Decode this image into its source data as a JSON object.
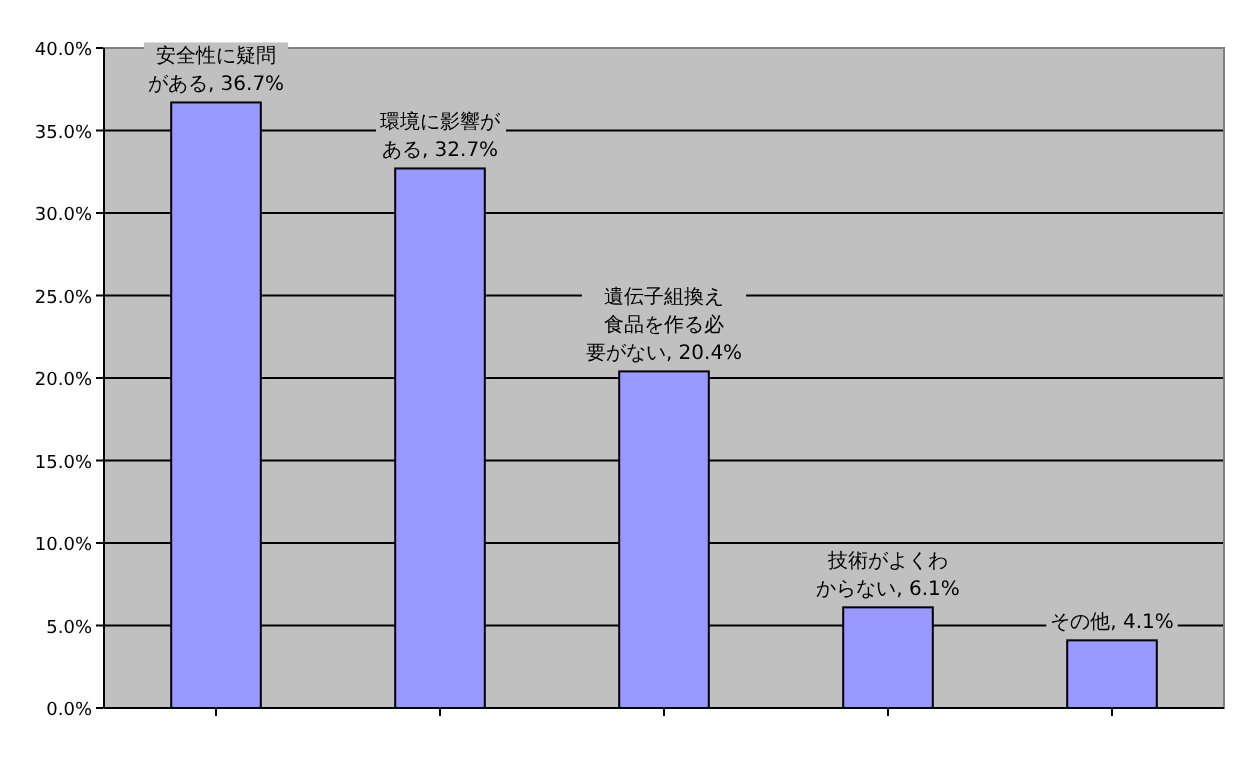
{
  "chart_data": {
    "type": "bar",
    "categories": [
      null,
      null,
      null,
      null,
      null
    ],
    "values": [
      36.7,
      32.7,
      20.4,
      6.1,
      4.1
    ],
    "color": "#9999ff",
    "value_labels": [
      "安全性に疑問がある, 36.7%",
      "環境に影響がある, 32.7%",
      "遺伝子組換え食品を作る必要がない, 20.4%",
      "技術がよくわからない, 6.1%",
      "その他, 4.1%"
    ],
    "ylim": [
      0,
      40
    ],
    "yticks": [
      {
        "value": 0,
        "label": "0.0%"
      },
      {
        "value": 5,
        "label": "5.0%"
      },
      {
        "value": 10,
        "label": "10.0%"
      },
      {
        "value": 15,
        "label": "15.0%"
      },
      {
        "value": 20,
        "label": "20.0%"
      },
      {
        "value": 25,
        "label": "25.0%"
      },
      {
        "value": 30,
        "label": "30.0%"
      },
      {
        "value": 35,
        "label": "35.0%"
      },
      {
        "value": 40,
        "label": "40.0%"
      }
    ],
    "grid": "y"
  }
}
